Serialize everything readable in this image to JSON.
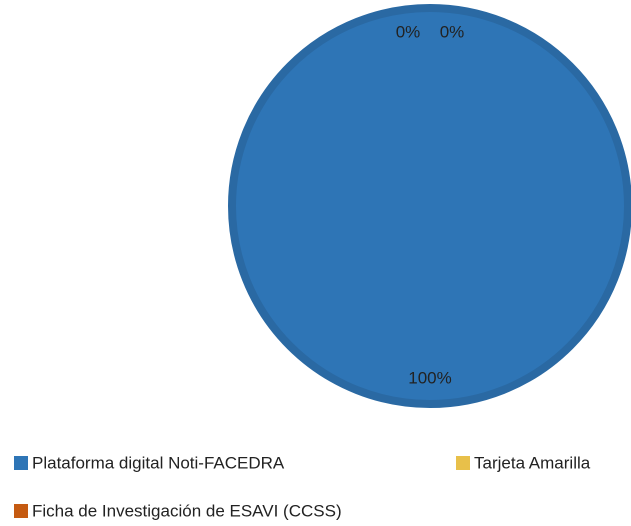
{
  "chart_data": {
    "type": "pie",
    "categories": [
      "Plataforma digital Noti-FACEDRA",
      "Tarjeta Amarilla",
      "Ficha de Investigación de ESAVI (CCSS)"
    ],
    "values": [
      100,
      0,
      0
    ],
    "value_labels": [
      "100%",
      "0%",
      "0%"
    ],
    "colors": [
      "#2e75b6",
      "#e8c04a",
      "#c55a11"
    ]
  }
}
